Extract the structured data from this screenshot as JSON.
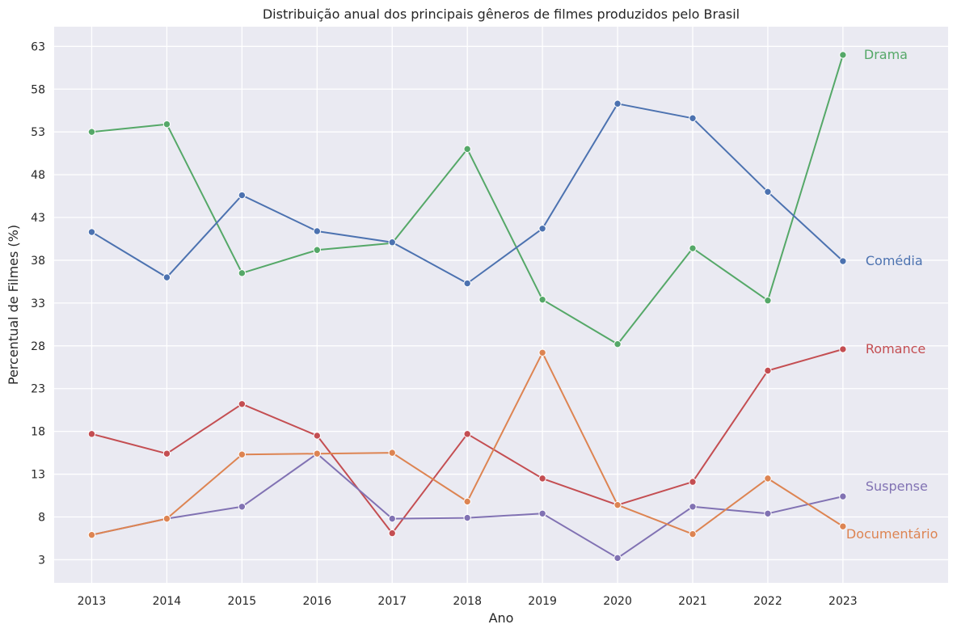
{
  "chart_data": {
    "type": "line",
    "title": "Distribuição anual dos principais gêneros de filmes produzidos pelo Brasil",
    "xlabel": "Ano",
    "ylabel": "Percentual de Filmes (%)",
    "x": [
      2013,
      2014,
      2015,
      2016,
      2017,
      2018,
      2019,
      2020,
      2021,
      2022,
      2023
    ],
    "xlim": [
      2012.5,
      2024.4
    ],
    "ylim": [
      0.3,
      65.3
    ],
    "yticks": [
      3,
      8,
      13,
      18,
      23,
      28,
      33,
      38,
      43,
      48,
      53,
      58,
      63
    ],
    "grid": true,
    "legend": "end-of-line labels",
    "series": [
      {
        "name": "Drama",
        "color": "#55a868",
        "values": [
          53.0,
          53.9,
          36.5,
          39.2,
          40.0,
          51.0,
          33.4,
          28.2,
          39.4,
          33.3,
          62.0
        ]
      },
      {
        "name": "Comédia",
        "color": "#4c72b0",
        "values": [
          41.3,
          36.0,
          45.6,
          41.4,
          40.1,
          35.3,
          41.7,
          56.3,
          54.6,
          46.0,
          37.9
        ]
      },
      {
        "name": "Romance",
        "color": "#c44e52",
        "values": [
          17.7,
          15.4,
          21.2,
          17.5,
          6.1,
          17.7,
          12.5,
          9.4,
          12.1,
          25.1,
          27.6
        ]
      },
      {
        "name": "Suspense",
        "color": "#8172b3",
        "values": [
          5.9,
          7.8,
          9.2,
          15.4,
          7.8,
          7.9,
          8.4,
          3.2,
          9.2,
          8.4,
          10.4
        ]
      },
      {
        "name": "Documentário",
        "color": "#dd8452",
        "values": [
          5.9,
          7.8,
          15.3,
          15.4,
          15.5,
          9.8,
          27.2,
          9.4,
          6.0,
          12.5,
          6.9
        ]
      }
    ]
  }
}
